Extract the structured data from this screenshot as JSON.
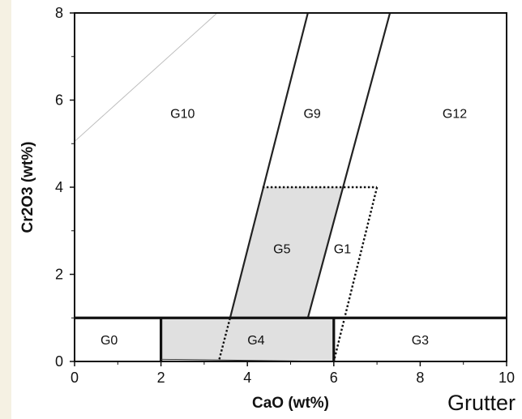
{
  "chart_data": {
    "type": "scatter",
    "title": "",
    "xlabel": "CaO (wt%)",
    "ylabel": "Cr2O3 (wt%)",
    "xlim": [
      0,
      10
    ],
    "ylim": [
      0,
      8
    ],
    "xticks": [
      "0",
      "2",
      "4",
      "6",
      "8",
      "10"
    ],
    "yticks": [
      "0",
      "2",
      "4",
      "6",
      "8"
    ],
    "grid": false,
    "background_color": "#ffffff",
    "strip_color": "#f5f1e3",
    "shade_color": "#e0e0e0",
    "regions": [
      {
        "label": "G0",
        "at": [
          0.8,
          0.5
        ]
      },
      {
        "label": "G4",
        "at": [
          4.2,
          0.5
        ]
      },
      {
        "label": "G3",
        "at": [
          8.0,
          0.5
        ]
      },
      {
        "label": "G5",
        "at": [
          4.8,
          2.6
        ]
      },
      {
        "label": "G1",
        "at": [
          6.2,
          2.6
        ]
      },
      {
        "label": "G10",
        "at": [
          2.5,
          5.7
        ]
      },
      {
        "label": "G9",
        "at": [
          5.5,
          5.7
        ]
      },
      {
        "label": "G12",
        "at": [
          8.8,
          5.7
        ]
      }
    ],
    "boundaries": [
      {
        "kind": "solid",
        "points": [
          [
            3.6,
            1.0
          ],
          [
            5.4,
            8.0
          ]
        ]
      },
      {
        "kind": "solid",
        "points": [
          [
            5.4,
            1.0
          ],
          [
            7.3,
            8.0
          ]
        ]
      },
      {
        "kind": "thick",
        "points": [
          [
            0,
            1.0
          ],
          [
            10,
            1.0
          ]
        ]
      },
      {
        "kind": "thick",
        "points": [
          [
            2.0,
            0
          ],
          [
            2.0,
            1.0
          ]
        ]
      },
      {
        "kind": "thick",
        "points": [
          [
            6.0,
            0
          ],
          [
            6.0,
            1.0
          ]
        ]
      },
      {
        "kind": "thin",
        "points": [
          [
            2.0,
            0.05
          ],
          [
            6.0,
            0.0
          ]
        ]
      },
      {
        "kind": "dotted",
        "points": [
          [
            4.35,
            4.0
          ],
          [
            7.0,
            4.0
          ]
        ]
      },
      {
        "kind": "dotted",
        "points": [
          [
            7.0,
            4.0
          ],
          [
            6.0,
            0.0
          ]
        ]
      },
      {
        "kind": "dotted",
        "points": [
          [
            3.35,
            0.05
          ],
          [
            3.6,
            1.0
          ]
        ]
      },
      {
        "kind": "faint",
        "points": [
          [
            0,
            5.05
          ],
          [
            3.3,
            8.0
          ]
        ]
      }
    ],
    "shaded": [
      [
        [
          3.6,
          1.0
        ],
        [
          5.4,
          1.0
        ],
        [
          6.2,
          4.0
        ],
        [
          4.4,
          4.0
        ]
      ],
      [
        [
          2.0,
          0.0
        ],
        [
          6.0,
          0.0
        ],
        [
          6.0,
          1.0
        ],
        [
          2.0,
          1.0
        ]
      ]
    ]
  },
  "credit": "Grutter"
}
